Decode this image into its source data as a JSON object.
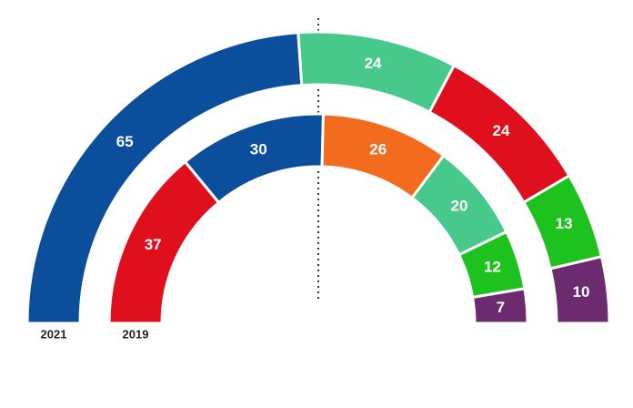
{
  "chart_data": {
    "type": "semi-donut",
    "series": [
      {
        "name": "2021",
        "values": [
          65,
          24,
          24,
          13,
          10
        ],
        "colors": [
          "#0b4f9c",
          "#46c98b",
          "#df0f1e",
          "#1ec21e",
          "#6c2a6f"
        ]
      },
      {
        "name": "2019",
        "values": [
          37,
          30,
          26,
          20,
          12,
          7
        ],
        "colors": [
          "#df0f1e",
          "#0b4f9c",
          "#f36b1c",
          "#46c98b",
          "#1ec21e",
          "#6c2a6f"
        ]
      }
    ]
  }
}
